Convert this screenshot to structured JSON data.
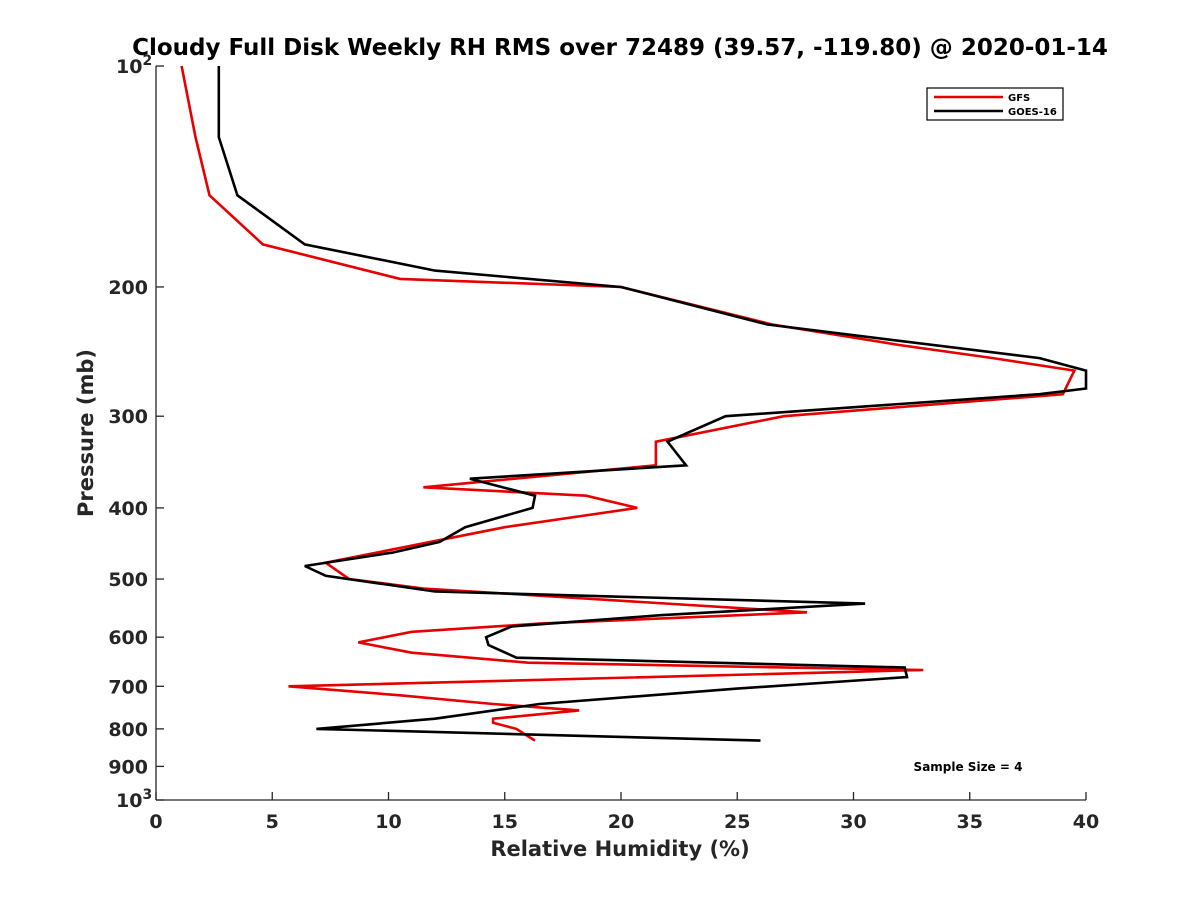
{
  "chart_data": {
    "type": "line",
    "title": "Cloudy Full Disk Weekly RH RMS over 72489 (39.57, -119.80) @ 2020-01-14",
    "xlabel": "Relative Humidity (%)",
    "ylabel": "Pressure (mb)",
    "xlim": [
      0,
      40
    ],
    "ylim": [
      100,
      1000
    ],
    "yscale": "log",
    "y_reversed": true,
    "grid": false,
    "legend_position": "top-right",
    "x_ticks": [
      0,
      5,
      10,
      15,
      20,
      25,
      30,
      35,
      40
    ],
    "x_tick_labels": [
      "0",
      "5",
      "10",
      "15",
      "20",
      "25",
      "30",
      "35",
      "40"
    ],
    "y_ticks": [
      {
        "value": 100,
        "base": "10",
        "exp": "2"
      },
      {
        "value": 200,
        "label": "200"
      },
      {
        "value": 300,
        "label": "300"
      },
      {
        "value": 400,
        "label": "400"
      },
      {
        "value": 500,
        "label": "500"
      },
      {
        "value": 600,
        "label": "600"
      },
      {
        "value": 700,
        "label": "700"
      },
      {
        "value": 800,
        "label": "800"
      },
      {
        "value": 900,
        "label": "900"
      },
      {
        "value": 1000,
        "base": "10",
        "exp": "3"
      }
    ],
    "annotation": "Sample Size = 4",
    "series": [
      {
        "name": "GFS",
        "color": "#e60000",
        "points": [
          [
            1.1,
            100
          ],
          [
            1.7,
            125
          ],
          [
            2.3,
            150
          ],
          [
            4.6,
            175
          ],
          [
            10.5,
            195
          ],
          [
            20.0,
            200
          ],
          [
            26.5,
            225
          ],
          [
            32.0,
            240
          ],
          [
            36.0,
            250
          ],
          [
            39.5,
            260
          ],
          [
            39.0,
            280
          ],
          [
            27.0,
            300
          ],
          [
            21.5,
            325
          ],
          [
            21.5,
            350
          ],
          [
            11.5,
            375
          ],
          [
            18.5,
            385
          ],
          [
            20.7,
            400
          ],
          [
            15.0,
            425
          ],
          [
            7.3,
            475
          ],
          [
            8.3,
            500
          ],
          [
            11.5,
            515
          ],
          [
            28.0,
            555
          ],
          [
            16.5,
            575
          ],
          [
            11.0,
            590
          ],
          [
            8.7,
            610
          ],
          [
            11.0,
            630
          ],
          [
            16.0,
            650
          ],
          [
            33.0,
            665
          ],
          [
            5.7,
            700
          ],
          [
            10.5,
            720
          ],
          [
            14.5,
            740
          ],
          [
            18.2,
            755
          ],
          [
            14.5,
            775
          ],
          [
            14.5,
            785
          ],
          [
            15.5,
            800
          ],
          [
            16.3,
            830
          ]
        ]
      },
      {
        "name": "GOES-16",
        "color": "#000000",
        "points": [
          [
            2.7,
            100
          ],
          [
            2.7,
            125
          ],
          [
            3.5,
            150
          ],
          [
            6.4,
            175
          ],
          [
            12.0,
            190
          ],
          [
            20.0,
            200
          ],
          [
            26.3,
            225
          ],
          [
            38.0,
            250
          ],
          [
            40.0,
            260
          ],
          [
            40.0,
            275
          ],
          [
            38.0,
            280
          ],
          [
            24.5,
            300
          ],
          [
            22.0,
            325
          ],
          [
            22.8,
            350
          ],
          [
            13.5,
            365
          ],
          [
            16.3,
            385
          ],
          [
            16.2,
            400
          ],
          [
            13.3,
            425
          ],
          [
            12.2,
            445
          ],
          [
            10.2,
            460
          ],
          [
            6.4,
            480
          ],
          [
            7.3,
            495
          ],
          [
            12.0,
            520
          ],
          [
            30.5,
            540
          ],
          [
            21.7,
            560
          ],
          [
            15.3,
            580
          ],
          [
            14.2,
            600
          ],
          [
            14.3,
            615
          ],
          [
            15.5,
            640
          ],
          [
            32.2,
            660
          ],
          [
            32.3,
            680
          ],
          [
            25.0,
            705
          ],
          [
            16.5,
            740
          ],
          [
            12.0,
            775
          ],
          [
            6.9,
            800
          ],
          [
            26.0,
            830
          ]
        ]
      }
    ]
  }
}
